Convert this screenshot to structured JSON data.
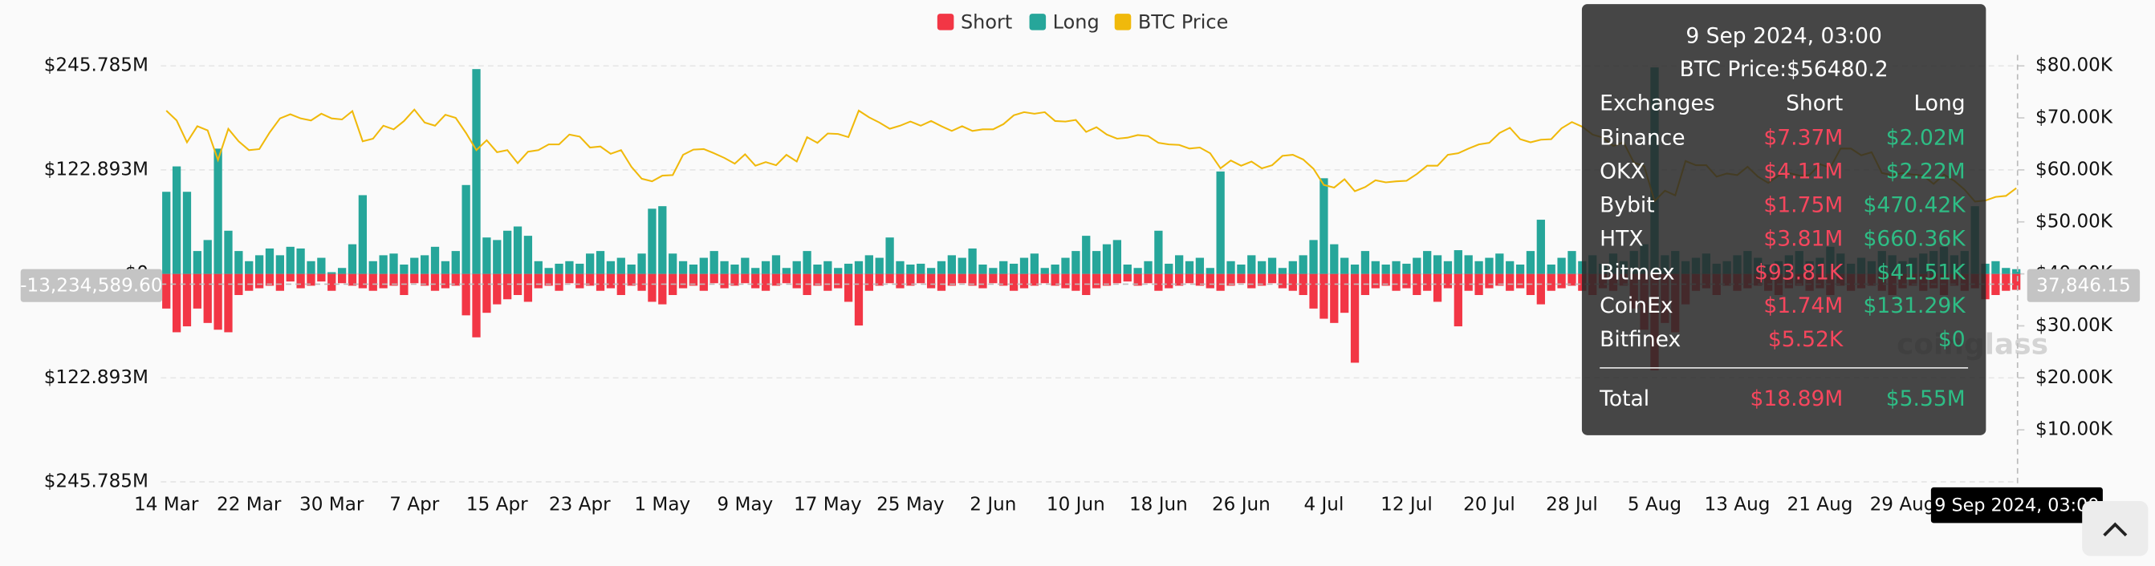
{
  "chart_data": {
    "type": "bar",
    "categories": [
      "14 Mar",
      null,
      null,
      null,
      null,
      null,
      null,
      null,
      "22 Mar",
      null,
      null,
      null,
      null,
      null,
      null,
      null,
      "30 Mar",
      null,
      null,
      null,
      null,
      null,
      null,
      null,
      "7 Apr",
      null,
      null,
      null,
      null,
      null,
      null,
      null,
      "15 Apr",
      null,
      null,
      null,
      null,
      null,
      null,
      null,
      "23 Apr",
      null,
      null,
      null,
      null,
      null,
      null,
      null,
      "1 May",
      null,
      null,
      null,
      null,
      null,
      null,
      null,
      "9 May",
      null,
      null,
      null,
      null,
      null,
      null,
      null,
      "17 May",
      null,
      null,
      null,
      null,
      null,
      null,
      null,
      "25 May",
      null,
      null,
      null,
      null,
      null,
      null,
      null,
      "2 Jun",
      null,
      null,
      null,
      null,
      null,
      null,
      null,
      "10 Jun",
      null,
      null,
      null,
      null,
      null,
      null,
      null,
      "18 Jun",
      null,
      null,
      null,
      null,
      null,
      null,
      null,
      "26 Jun",
      null,
      null,
      null,
      null,
      null,
      null,
      null,
      "4 Jul",
      null,
      null,
      null,
      null,
      null,
      null,
      null,
      "12 Jul",
      null,
      null,
      null,
      null,
      null,
      null,
      null,
      "20 Jul",
      null,
      null,
      null,
      null,
      null,
      null,
      null,
      "28 Jul",
      null,
      null,
      null,
      null,
      null,
      null,
      null,
      "5 Aug",
      null,
      null,
      null,
      null,
      null,
      null,
      null,
      "13 Aug",
      null,
      null,
      null,
      null,
      null,
      null,
      null,
      "21 Aug",
      null,
      null,
      null,
      null,
      null,
      null,
      null,
      "29 Aug",
      null,
      null,
      null,
      null,
      null,
      null,
      null,
      null,
      null,
      null,
      "9 Sep 2024, 03:00"
    ],
    "series": [
      {
        "name": "Short",
        "color": "#f23645",
        "values": [
          -41,
          -69,
          -62,
          -41,
          -58,
          -66,
          -69,
          -25,
          -20,
          -17,
          -14,
          -20,
          -9,
          -17,
          -14,
          -9,
          -20,
          -11,
          -14,
          -17,
          -20,
          -17,
          -14,
          -25,
          -11,
          -14,
          -20,
          -17,
          -14,
          -49,
          -75,
          -46,
          -36,
          -30,
          -25,
          -33,
          -17,
          -14,
          -20,
          -11,
          -17,
          -14,
          -20,
          -17,
          -25,
          -14,
          -20,
          -33,
          -36,
          -25,
          -17,
          -14,
          -20,
          -11,
          -17,
          -14,
          -11,
          -17,
          -20,
          -14,
          -11,
          -17,
          -25,
          -14,
          -20,
          -17,
          -33,
          -61,
          -20,
          -14,
          -11,
          -17,
          -14,
          -11,
          -17,
          -20,
          -14,
          -11,
          -14,
          -17,
          -11,
          -14,
          -20,
          -17,
          -14,
          -11,
          -14,
          -17,
          -20,
          -25,
          -17,
          -14,
          -11,
          -9,
          -14,
          -11,
          -20,
          -17,
          -14,
          -11,
          -14,
          -17,
          -20,
          -14,
          -11,
          -17,
          -14,
          -11,
          -17,
          -20,
          -25,
          -41,
          -53,
          -58,
          -46,
          -105,
          -25,
          -17,
          -14,
          -20,
          -17,
          -25,
          -20,
          -33,
          -17,
          -62,
          -20,
          -25,
          -17,
          -14,
          -20,
          -17,
          -25,
          -36,
          -20,
          -17,
          -14,
          -20,
          -25,
          -17,
          -20,
          -14,
          -41,
          -66,
          -114,
          -58,
          -69,
          -36,
          -20,
          -17,
          -25,
          -14,
          -20,
          -17,
          -14,
          -20,
          -25,
          -17,
          -14,
          -20,
          -17,
          -25,
          -14,
          -20,
          -17,
          -14,
          -20,
          -25,
          -17,
          -14,
          -20,
          -17,
          -25,
          -14,
          -20,
          -17,
          -30,
          -25,
          -20,
          -18.89
        ]
      },
      {
        "name": "Long",
        "color": "#26a69a",
        "values": [
          97,
          127,
          97,
          27,
          40,
          148,
          51,
          27,
          15,
          22,
          30,
          22,
          32,
          30,
          15,
          19,
          2,
          7,
          35,
          93,
          15,
          22,
          24,
          11,
          19,
          22,
          32,
          15,
          27,
          105,
          242,
          43,
          40,
          51,
          56,
          45,
          15,
          7,
          12,
          15,
          12,
          24,
          27,
          15,
          19,
          11,
          24,
          77,
          80,
          24,
          15,
          11,
          19,
          27,
          15,
          11,
          19,
          7,
          15,
          22,
          7,
          15,
          27,
          11,
          15,
          7,
          12,
          15,
          22,
          19,
          43,
          15,
          11,
          12,
          7,
          15,
          22,
          19,
          30,
          11,
          7,
          15,
          12,
          19,
          24,
          7,
          11,
          19,
          27,
          45,
          27,
          35,
          40,
          11,
          7,
          15,
          51,
          12,
          22,
          15,
          19,
          7,
          121,
          15,
          11,
          22,
          15,
          19,
          7,
          15,
          22,
          40,
          113,
          35,
          19,
          11,
          27,
          15,
          11,
          15,
          12,
          19,
          27,
          22,
          15,
          28,
          22,
          15,
          19,
          24,
          15,
          11,
          27,
          64,
          11,
          19,
          27,
          15,
          22,
          12,
          24,
          15,
          27,
          35,
          244,
          22,
          27,
          15,
          19,
          24,
          12,
          15,
          22,
          27,
          19,
          11,
          15,
          22,
          27,
          15,
          19,
          32,
          24,
          12,
          19,
          15,
          27,
          22,
          15,
          19,
          24,
          27,
          32,
          22,
          27,
          80,
          12,
          15,
          7,
          5.55
        ]
      },
      {
        "name": "BTC Price",
        "color": "#f0b90b",
        "type": "line",
        "axis": "y2",
        "values": [
          71400,
          69500,
          65300,
          68400,
          67600,
          61900,
          67900,
          65500,
          63800,
          64000,
          67200,
          69900,
          70700,
          69900,
          69500,
          70800,
          69900,
          69700,
          71300,
          65500,
          66000,
          68500,
          67800,
          69400,
          71600,
          69100,
          68500,
          70600,
          70000,
          67100,
          63800,
          65700,
          63400,
          63800,
          61300,
          63500,
          63800,
          64900,
          64900,
          66800,
          66400,
          64300,
          64500,
          63100,
          63800,
          60600,
          58300,
          57800,
          58900,
          59000,
          62900,
          63900,
          64000,
          63200,
          62300,
          61200,
          63000,
          60800,
          61500,
          60900,
          62900,
          61600,
          66300,
          65200,
          67000,
          66900,
          66300,
          71400,
          70100,
          69100,
          67900,
          68500,
          69300,
          68500,
          69400,
          68400,
          67500,
          68400,
          67500,
          67800,
          67800,
          68800,
          70500,
          71100,
          70800,
          71100,
          69400,
          69300,
          69600,
          67300,
          68200,
          66800,
          66000,
          66200,
          66700,
          66500,
          65200,
          64900,
          64800,
          64100,
          64300,
          63200,
          60300,
          61800,
          60800,
          61600,
          60300,
          60900,
          62700,
          62900,
          62000,
          60200,
          57100,
          56600,
          58200,
          55900,
          56700,
          58000,
          57600,
          57800,
          57900,
          59200,
          60800,
          60800,
          62900,
          63200,
          64100,
          64900,
          65200,
          67100,
          68100,
          65900,
          65300,
          65800,
          65900,
          68000,
          69200,
          68300,
          66800,
          66200,
          64600,
          65300,
          61400,
          60700,
          54000,
          56000,
          55100,
          61700,
          60900,
          60900,
          58700,
          59300,
          59000,
          60600,
          58700,
          57500,
          58900,
          59400,
          58900,
          59000,
          61100,
          60400,
          64100,
          64100,
          62800,
          63400,
          59400,
          59000,
          59400,
          59100,
          58900,
          57300,
          59100,
          57900,
          56200,
          53900,
          54100,
          54800,
          55000,
          56480.2
        ]
      }
    ],
    "ylim": [
      -245.785,
      245.785
    ],
    "yticks": [
      {
        "value": 245.785,
        "label": "$245.785M"
      },
      {
        "value": 122.893,
        "label": "$122.893M"
      },
      {
        "value": 0,
        "label": "$0"
      },
      {
        "value": -122.893,
        "label": "$122.893M"
      },
      {
        "value": -245.785,
        "label": "$245.785M"
      }
    ],
    "y2lim": [
      0,
      80000
    ],
    "y2ticks": [
      {
        "value": 80000,
        "label": "$80.00K"
      },
      {
        "value": 70000,
        "label": "$70.00K"
      },
      {
        "value": 60000,
        "label": "$60.00K"
      },
      {
        "value": 50000,
        "label": "$50.00K"
      },
      {
        "value": 40000,
        "label": "$40.00K"
      },
      {
        "value": 30000,
        "label": "$30.00K"
      },
      {
        "value": 20000,
        "label": "$20.00K"
      },
      {
        "value": 10000,
        "label": "$10.00K"
      }
    ],
    "grid": true,
    "legend": "top"
  },
  "crosshair": {
    "y_label": "-13,234,589.60",
    "y2_label": "37,846.15"
  },
  "tooltip": {
    "title": "9 Sep 2024, 03:00",
    "price": "BTC Price:$56480.2",
    "header": [
      "Exchanges",
      "Short",
      "Long"
    ],
    "rows": [
      [
        "Binance",
        "$7.37M",
        "$2.02M"
      ],
      [
        "OKX",
        "$4.11M",
        "$2.22M"
      ],
      [
        "Bybit",
        "$1.75M",
        "$470.42K"
      ],
      [
        "HTX",
        "$3.81M",
        "$660.36K"
      ],
      [
        "Bitmex",
        "$93.81K",
        "$41.51K"
      ],
      [
        "CoinEx",
        "$1.74M",
        "$131.29K"
      ],
      [
        "Bitfinex",
        "$5.52K",
        "$0"
      ]
    ],
    "total": [
      "Total",
      "$18.89M",
      "$5.55M"
    ]
  },
  "watermark": "coinglass"
}
